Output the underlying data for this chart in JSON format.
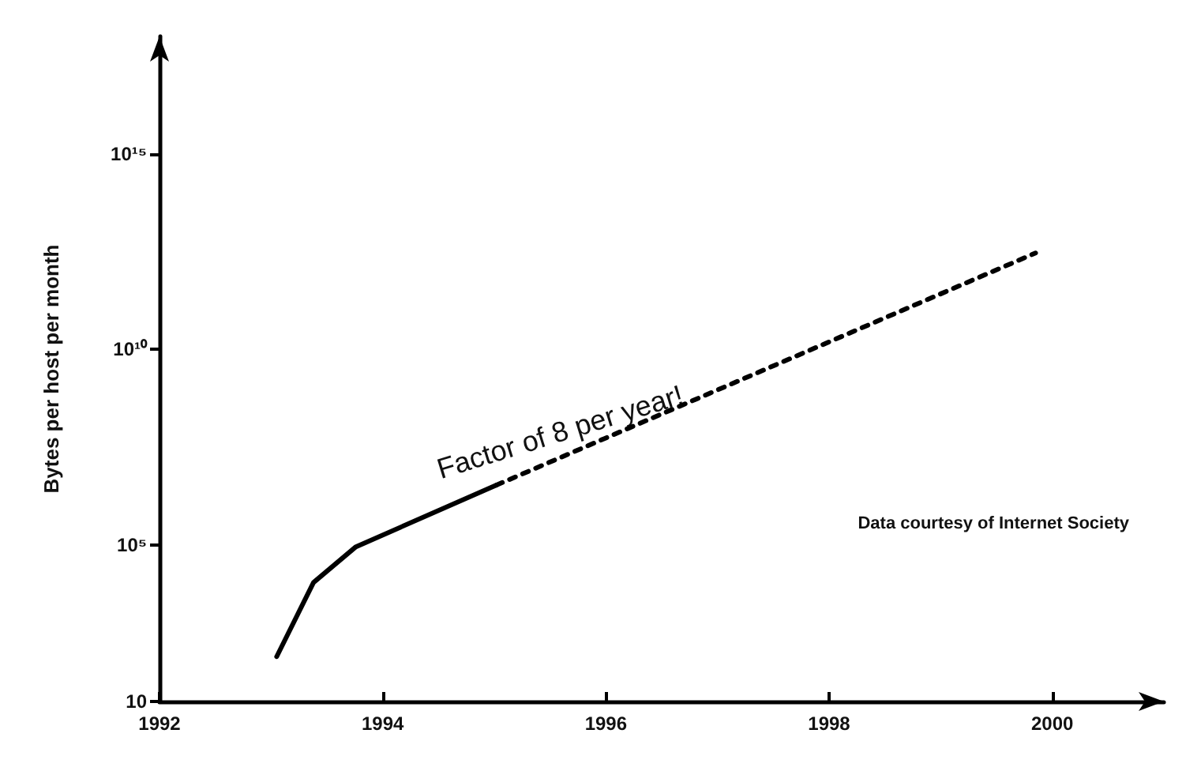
{
  "chart_data": {
    "type": "line",
    "ylabel": "Bytes per host per month",
    "xlim": [
      1992,
      2001
    ],
    "xticks": [
      1992,
      1994,
      1996,
      1998,
      2000
    ],
    "ylim": [
      10,
      1e+18
    ],
    "yticks": [
      10,
      {
        "value": 100000,
        "label": "10⁵"
      },
      {
        "value": 10000000000,
        "label": "10¹⁰"
      },
      {
        "value": 1000000000000000,
        "label": "10¹⁵"
      }
    ],
    "log": "y",
    "series": [
      {
        "color": "#000000",
        "line_style": "solid",
        "x": [
          1993.05,
          1993.38,
          1993.76,
          1995.02
        ],
        "values": [
          140,
          11000,
          90000,
          3400000
        ]
      },
      {
        "color": "#000000",
        "line_style": "dashed",
        "x": [
          1995.02,
          1999.85
        ],
        "values": [
          3400000,
          2900000000000
        ]
      }
    ],
    "annotations": [
      "Factor of 8 per year!",
      "Data courtesy of Internet Society"
    ]
  }
}
